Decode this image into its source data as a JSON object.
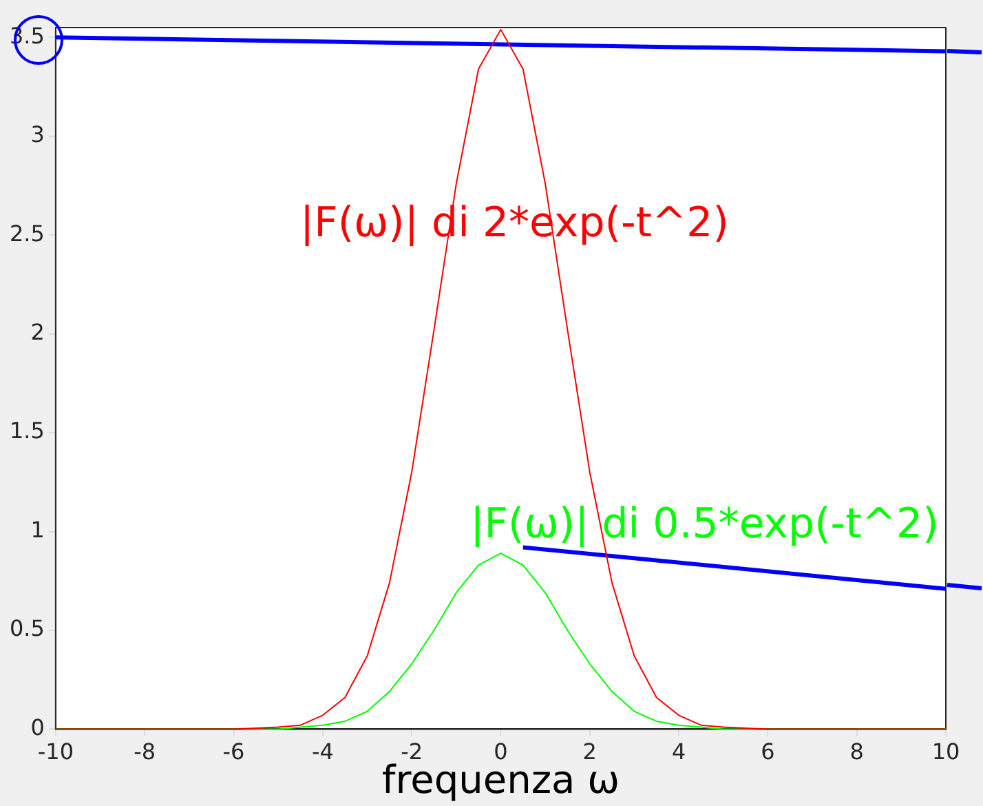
{
  "chart_data": {
    "type": "line",
    "xlabel": "frequenza ω",
    "x": [
      -10,
      -6,
      -5,
      -4.5,
      -4,
      -3.5,
      -3,
      -2.5,
      -2,
      -1.5,
      -1,
      -0.5,
      0,
      0.5,
      1,
      1.5,
      2,
      2.5,
      3,
      3.5,
      4,
      4.5,
      5,
      6,
      10
    ],
    "series": [
      {
        "name": "|F(ω)| di 2*exp(-t^2)",
        "color": "#ff0000",
        "values": [
          0,
          0,
          0.01,
          0.02,
          0.07,
          0.16,
          0.37,
          0.74,
          1.3,
          2.02,
          2.76,
          3.34,
          3.54,
          3.34,
          2.76,
          2.02,
          1.3,
          0.74,
          0.37,
          0.16,
          0.07,
          0.02,
          0.01,
          0,
          0
        ]
      },
      {
        "name": "|F(ω)| di 0.5*exp(-t^2)",
        "color": "#00ff00",
        "values": [
          0,
          0,
          0,
          0.01,
          0.02,
          0.04,
          0.09,
          0.19,
          0.33,
          0.5,
          0.69,
          0.83,
          0.89,
          0.83,
          0.69,
          0.5,
          0.33,
          0.19,
          0.09,
          0.04,
          0.02,
          0.01,
          0,
          0,
          0
        ]
      },
      {
        "x": [
          -10,
          10
        ],
        "color": "#0000ff",
        "values": [
          3.5,
          3.43
        ]
      },
      {
        "x": [
          0.5,
          10
        ],
        "color": "#0000ff",
        "values": [
          0.92,
          0.71
        ]
      }
    ],
    "xlim": [
      -10,
      10
    ],
    "xticks": [
      -10,
      -8,
      -6,
      -4,
      -2,
      0,
      2,
      4,
      6,
      8,
      10
    ],
    "ylim": [
      0,
      3.55
    ],
    "yticks": [
      0,
      0.5,
      1,
      1.5,
      2,
      2.5,
      3,
      3.5
    ],
    "grid": false,
    "legend": false,
    "marker": "none",
    "line_style": "solid"
  }
}
